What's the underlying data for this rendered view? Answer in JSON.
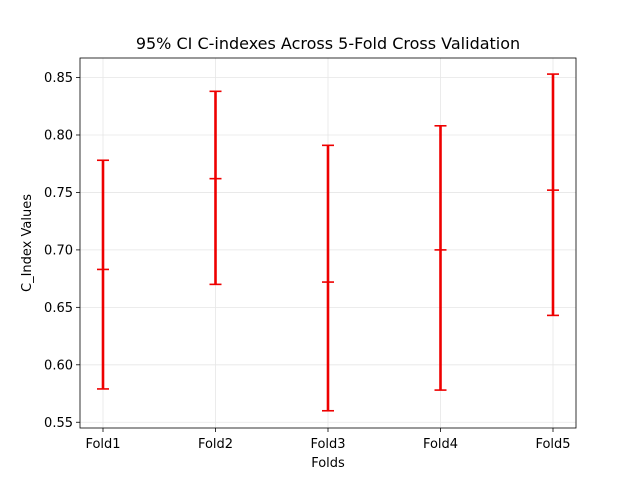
{
  "chart_data": {
    "type": "errorbar",
    "title": "95% CI C-indexes Across 5-Fold Cross Validation",
    "xlabel": "Folds",
    "ylabel": "C_Index Values",
    "categories": [
      "Fold1",
      "Fold2",
      "Fold3",
      "Fold4",
      "Fold5"
    ],
    "series": [
      {
        "values": [
          {
            "lower": 0.579,
            "mid": 0.683,
            "upper": 0.778
          },
          {
            "lower": 0.67,
            "mid": 0.762,
            "upper": 0.838
          },
          {
            "lower": 0.56,
            "mid": 0.672,
            "upper": 0.791
          },
          {
            "lower": 0.578,
            "mid": 0.7,
            "upper": 0.808
          },
          {
            "lower": 0.643,
            "mid": 0.752,
            "upper": 0.853
          }
        ],
        "color": "#ee0000"
      }
    ],
    "ylim": [
      0.545,
      0.867
    ],
    "yticks": [
      "0.55",
      "0.60",
      "0.65",
      "0.70",
      "0.75",
      "0.80",
      "0.85"
    ],
    "grid": true
  }
}
